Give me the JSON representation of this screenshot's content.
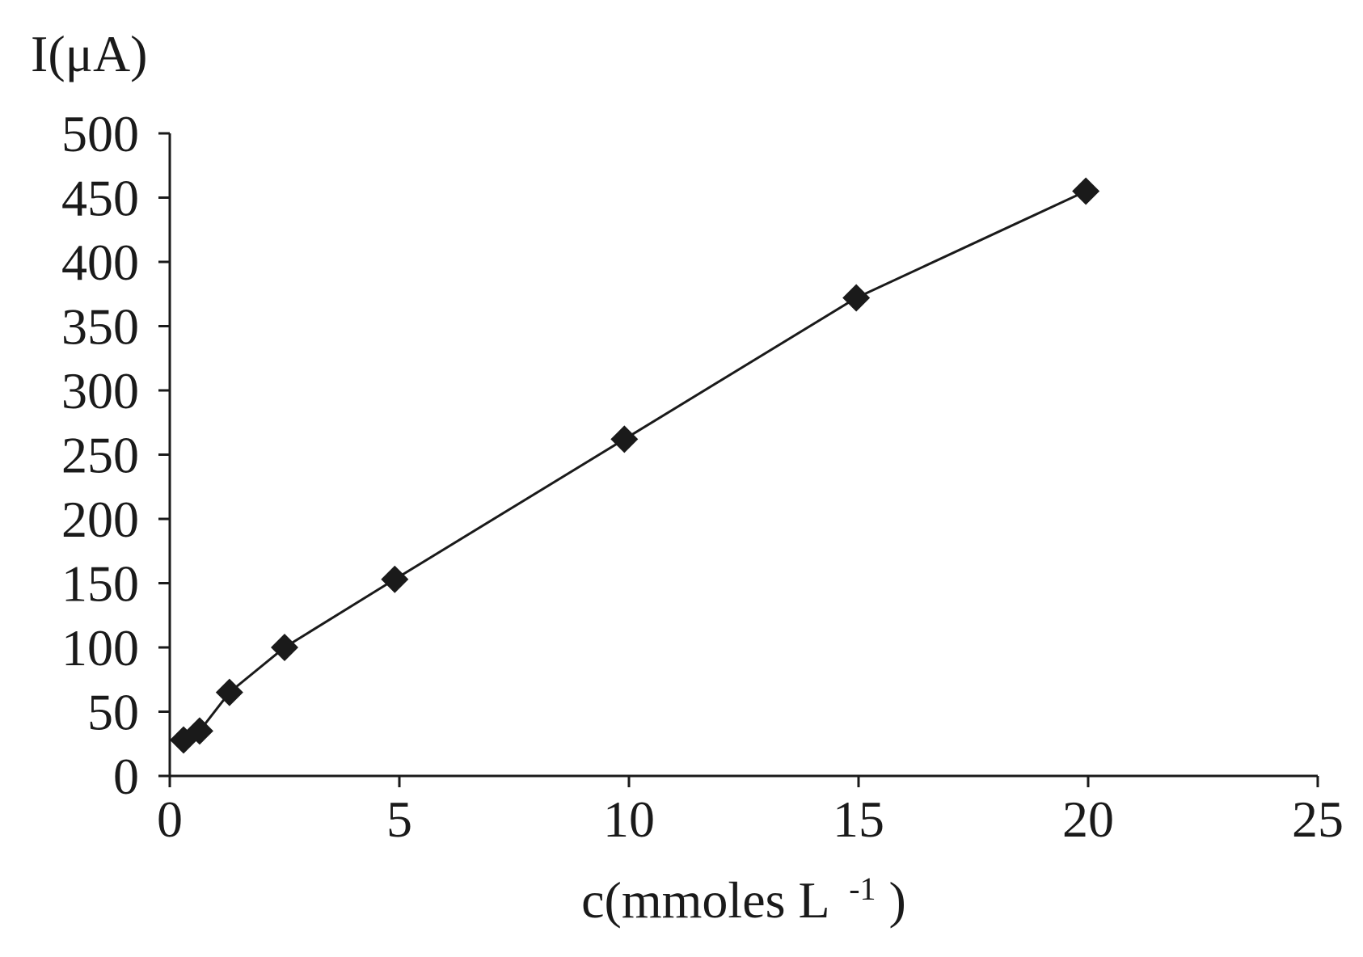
{
  "chart_data": {
    "type": "line",
    "ylabel": "I(μA)",
    "xlabel": {
      "text": "c(mmoles L",
      "superscript": "-1",
      "close": ")"
    },
    "xlim": [
      0,
      25
    ],
    "ylim": [
      0,
      500
    ],
    "xticks": [
      0,
      5,
      10,
      15,
      20,
      25
    ],
    "yticks": [
      0,
      50,
      100,
      150,
      200,
      250,
      300,
      350,
      400,
      450,
      500
    ],
    "marker": "diamond",
    "grid": false,
    "colors": {
      "line": "#1a1a1a",
      "marker": "#1a1a1a",
      "axis": "#1a1a1a"
    },
    "series": [
      {
        "x": [
          0.3,
          0.65,
          1.3,
          2.5,
          4.9,
          9.9,
          14.95,
          19.95
        ],
        "y": [
          28,
          35,
          65,
          100,
          153,
          262,
          372,
          455
        ]
      }
    ]
  }
}
